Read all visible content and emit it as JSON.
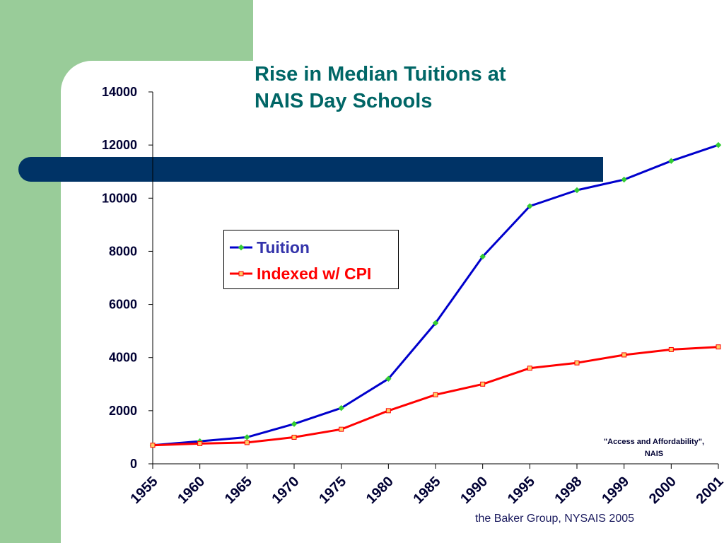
{
  "chart_data": {
    "type": "line",
    "title": "Rise in Median Tuitions at\nNAIS Day  Schools",
    "categories": [
      "1955",
      "1960",
      "1965",
      "1970",
      "1975",
      "1980",
      "1985",
      "1990",
      "1995",
      "1998",
      "1999",
      "2000",
      "2001"
    ],
    "series": [
      {
        "name": "Tuition",
        "color": "#0000cc",
        "marker_color": "#33cc33",
        "values": [
          700,
          850,
          1000,
          1500,
          2100,
          3200,
          5300,
          7800,
          9700,
          10300,
          10700,
          11400,
          12000
        ]
      },
      {
        "name": "Indexed w/ CPI",
        "color": "#ff0000",
        "marker_color": "#ffcc66",
        "values": [
          700,
          760,
          800,
          1000,
          1300,
          2000,
          2600,
          3000,
          3600,
          3800,
          4100,
          4300,
          4400
        ]
      }
    ],
    "yticks": [
      "0",
      "2000",
      "4000",
      "6000",
      "8000",
      "10000",
      "12000",
      "14000"
    ],
    "ylim": [
      0,
      14000
    ],
    "grid": false,
    "legend_position": "upper-left",
    "annotation": "\"Access and Affordability\",\nNAIS"
  },
  "footer": {
    "credit": "the Baker Group, NYSAIS 2005"
  },
  "colors": {
    "green_panel": "#99cc99",
    "navy_bar": "#003366",
    "title": "#006666"
  }
}
